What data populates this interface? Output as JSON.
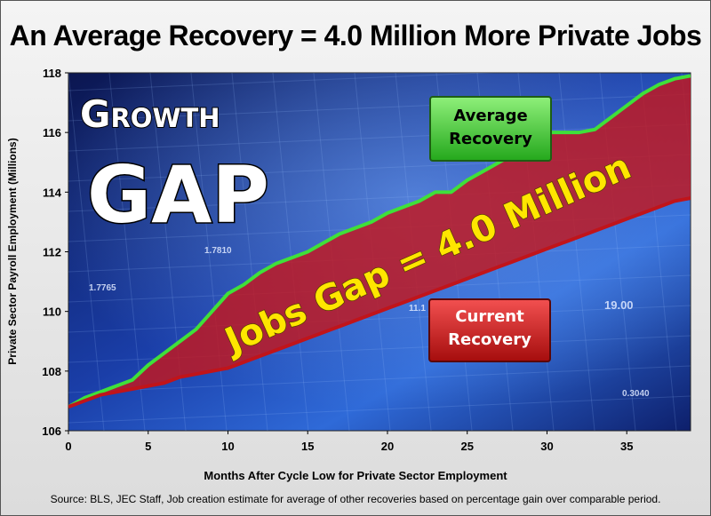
{
  "title": "An Average Recovery = 4.0 Million More Private Jobs",
  "footer": {
    "source": "Source:  BLS, JEC Staff,  Job creation estimate for average of other recoveries  based on percentage gain over comparable period."
  },
  "overlay": {
    "headline_line1": "Growth",
    "headline_line2": "GAP",
    "gap_label": "Jobs Gap = 4.0 Million",
    "average_box": [
      "Average",
      "Recovery"
    ],
    "current_box": [
      "Current",
      "Recovery"
    ],
    "background_numbers": [
      "1.7810",
      "1.7765",
      "11.1",
      "19.00",
      "0.3040"
    ]
  },
  "colors": {
    "average_line": "#3fe03a",
    "current_line": "#c0141a",
    "gap_fill": "#c4161c",
    "average_box": "#35c224",
    "current_box": "#c81414",
    "gap_text": "#ffe600",
    "background_dark": "#0a1a5a",
    "background_light": "#3d7be0"
  },
  "chart_data": {
    "type": "line",
    "title": "An Average Recovery = 4.0 Million More Private Jobs",
    "xlabel": "Months After Cycle Low for Private Sector Employment",
    "ylabel": "Private Sector Payroll Employment (Millions)",
    "xlim": [
      0,
      39
    ],
    "ylim": [
      106,
      118
    ],
    "x_ticks": [
      0,
      5,
      10,
      15,
      20,
      25,
      30,
      35
    ],
    "y_ticks": [
      106,
      108,
      110,
      112,
      114,
      116,
      118
    ],
    "grid": false,
    "series": [
      {
        "name": "Average Recovery",
        "x": [
          0,
          1,
          2,
          3,
          4,
          5,
          6,
          7,
          8,
          9,
          10,
          11,
          12,
          13,
          14,
          15,
          16,
          17,
          18,
          19,
          20,
          21,
          22,
          23,
          24,
          25,
          26,
          27,
          28,
          29,
          30,
          31,
          32,
          33,
          34,
          35,
          36,
          37,
          38,
          39
        ],
        "values": [
          106.8,
          107.1,
          107.3,
          107.5,
          107.7,
          108.2,
          108.6,
          109.0,
          109.4,
          110.0,
          110.6,
          110.9,
          111.3,
          111.6,
          111.8,
          112.0,
          112.3,
          112.6,
          112.8,
          113.0,
          113.3,
          113.5,
          113.7,
          114.0,
          114.0,
          114.4,
          114.7,
          115.0,
          115.3,
          115.7,
          116.0,
          116.0,
          116.0,
          116.1,
          116.5,
          116.9,
          117.3,
          117.6,
          117.8,
          117.9
        ]
      },
      {
        "name": "Current Recovery",
        "x": [
          0,
          1,
          2,
          3,
          4,
          5,
          6,
          7,
          8,
          9,
          10,
          11,
          12,
          13,
          14,
          15,
          16,
          17,
          18,
          19,
          20,
          21,
          22,
          23,
          24,
          25,
          26,
          27,
          28,
          29,
          30,
          31,
          32,
          33,
          34,
          35,
          36,
          37,
          38,
          39
        ],
        "values": [
          106.8,
          107.0,
          107.2,
          107.3,
          107.4,
          107.5,
          107.6,
          107.8,
          107.9,
          108.0,
          108.1,
          108.3,
          108.5,
          108.7,
          108.9,
          109.1,
          109.3,
          109.5,
          109.7,
          109.9,
          110.1,
          110.3,
          110.5,
          110.7,
          110.9,
          111.1,
          111.3,
          111.5,
          111.7,
          111.9,
          112.1,
          112.3,
          112.5,
          112.7,
          112.9,
          113.1,
          113.3,
          113.5,
          113.7,
          113.8
        ]
      }
    ],
    "annotation": "Jobs Gap = 4.0 Million"
  }
}
